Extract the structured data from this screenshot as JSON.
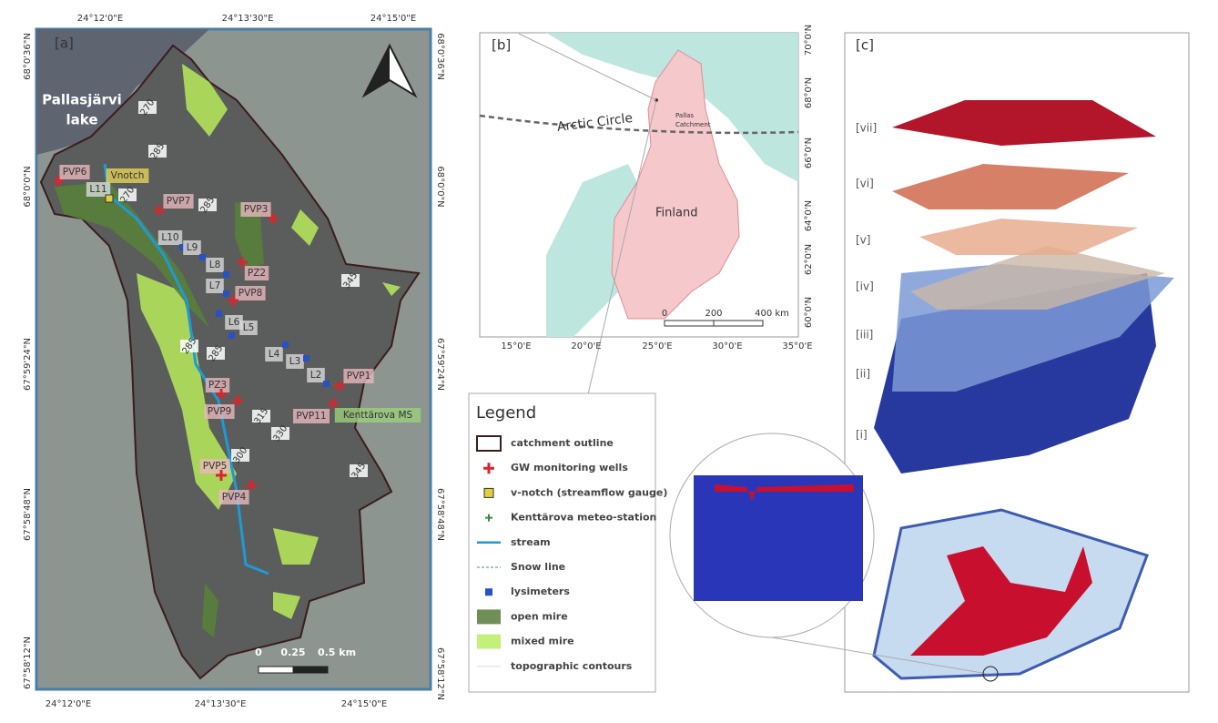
{
  "panel_a": {
    "label": "[a]",
    "lake_lines": [
      "Pallasjärvi",
      "lake"
    ],
    "top_lon": [
      "24°12'0\"E",
      "24°13'30\"E",
      "24°15'0\"E"
    ],
    "bottom_lon": [
      "24°12'0\"E",
      "24°13'30\"E",
      "24°15'0\"E"
    ],
    "left_lat": [
      "68°0'36\"N",
      "68°0'0\"N",
      "67°59'24\"N",
      "67°58'48\"N",
      "67°58'12\"N"
    ],
    "right_lat": [
      "68°0'36\"N",
      "68°0'0\"N",
      "67°59'24\"N",
      "67°58'48\"N",
      "67°58'12\"N"
    ],
    "sites": [
      "PVP6",
      "L11",
      "Vnotch",
      "PVP7",
      "PVP3",
      "L10",
      "L9",
      "L8",
      "PZ2",
      "L7",
      "PVP8",
      "L6",
      "L5",
      "L4",
      "L3",
      "L2",
      "PVP1",
      "PZ3",
      "PVP9",
      "PVP11",
      "Kenttärova MS",
      "PVP5",
      "PVP4"
    ],
    "contours": [
      "270",
      "285",
      "270",
      "285",
      "345",
      "285",
      "285",
      "315",
      "330",
      "300",
      "345"
    ],
    "scale": [
      "0",
      "0.25",
      "0.5 km"
    ]
  },
  "panel_b": {
    "label": "[b]",
    "arctic_circle": "Arctic Circle",
    "catchment_lines": [
      "Pallas",
      "Catchment"
    ],
    "country": "Finland",
    "scale": [
      "0",
      "200",
      "400 km"
    ],
    "lon": [
      "15°0'E",
      "20°0'E",
      "25°0'E",
      "30°0'E",
      "35°0'E"
    ],
    "lat": [
      "70°0'N",
      "68°0'N",
      "66°0'N",
      "64°0'N",
      "62°0'N",
      "60°0'N"
    ]
  },
  "legend": {
    "title": "Legend",
    "items": [
      "catchment outline",
      "GW monitoring wells",
      "v-notch (streamflow gauge)",
      "Kenttärova meteo-station",
      "stream",
      "Snow line",
      "lysimeters",
      "open mire",
      "mixed mire",
      "topographic contours"
    ]
  },
  "panel_c": {
    "label": "[c]",
    "layers": [
      "[vii]",
      "[vi]",
      "[v]",
      "[iv]",
      "[iii]",
      "[ii]",
      "[i]"
    ]
  }
}
